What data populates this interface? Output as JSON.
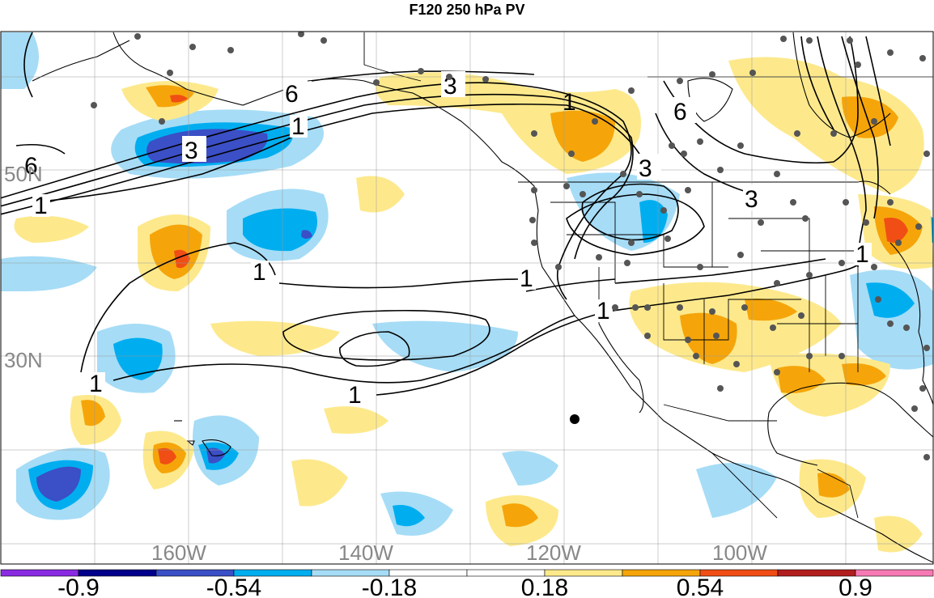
{
  "title": "F120 250 hPa PV",
  "map": {
    "lat_labels": [
      "50N",
      "30N"
    ],
    "lon_labels": [
      "160W",
      "140W",
      "120W",
      "100W"
    ],
    "contour_labels": [
      "6",
      "3",
      "1",
      "6",
      "3",
      "1",
      "1",
      "1",
      "1",
      "1",
      "1",
      "6",
      "3",
      "3",
      "1",
      "1"
    ]
  },
  "colorbar": {
    "tick_labels": [
      "-0.9",
      "-0.54",
      "-0.18",
      "0.18",
      "0.54",
      "0.9"
    ],
    "colors": [
      "#8a2be2",
      "#00008b",
      "#3b4fc6",
      "#00aef0",
      "#a6dcf6",
      "#ffffff",
      "#ffffff",
      "#fde98c",
      "#f5a50a",
      "#f04e14",
      "#b21e1e",
      "#f57ab4"
    ]
  }
}
